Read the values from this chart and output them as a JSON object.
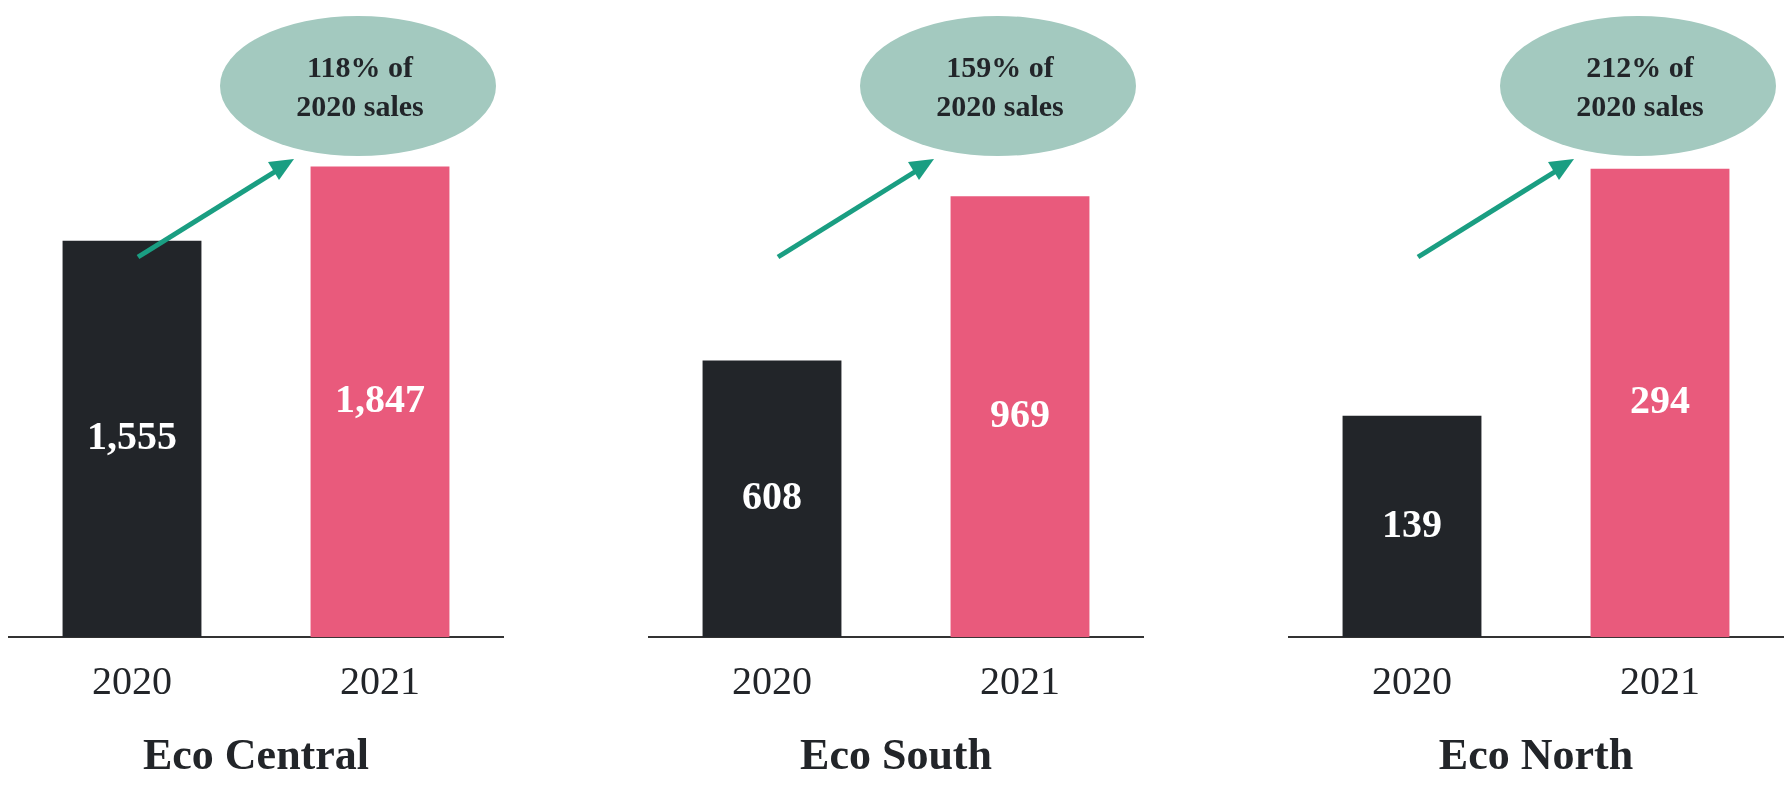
{
  "chart_data": [
    {
      "type": "bar",
      "title": "Eco Central",
      "categories": [
        "2020",
        "2021"
      ],
      "values": [
        1555,
        1847
      ],
      "value_labels": [
        "1,555",
        "1,847"
      ],
      "colors": [
        "#222529",
        "#e95a7c"
      ],
      "data_labels": true,
      "grid": false,
      "legend": false,
      "tick_labels": "x",
      "annotations": [
        "118% of 2020 sales"
      ]
    },
    {
      "type": "bar",
      "title": "Eco South",
      "categories": [
        "2020",
        "2021"
      ],
      "values": [
        608,
        969
      ],
      "value_labels": [
        "608",
        "969"
      ],
      "colors": [
        "#222529",
        "#e95a7c"
      ],
      "data_labels": true,
      "grid": false,
      "legend": false,
      "tick_labels": "x",
      "annotations": [
        "159% of 2020 sales"
      ]
    },
    {
      "type": "bar",
      "title": "Eco North",
      "categories": [
        "2020",
        "2021"
      ],
      "values": [
        139,
        294
      ],
      "value_labels": [
        "139",
        "294"
      ],
      "colors": [
        "#222529",
        "#e95a7c"
      ],
      "data_labels": true,
      "grid": false,
      "legend": false,
      "tick_labels": "x",
      "annotations": [
        "212% of 2020 sales"
      ]
    }
  ]
}
